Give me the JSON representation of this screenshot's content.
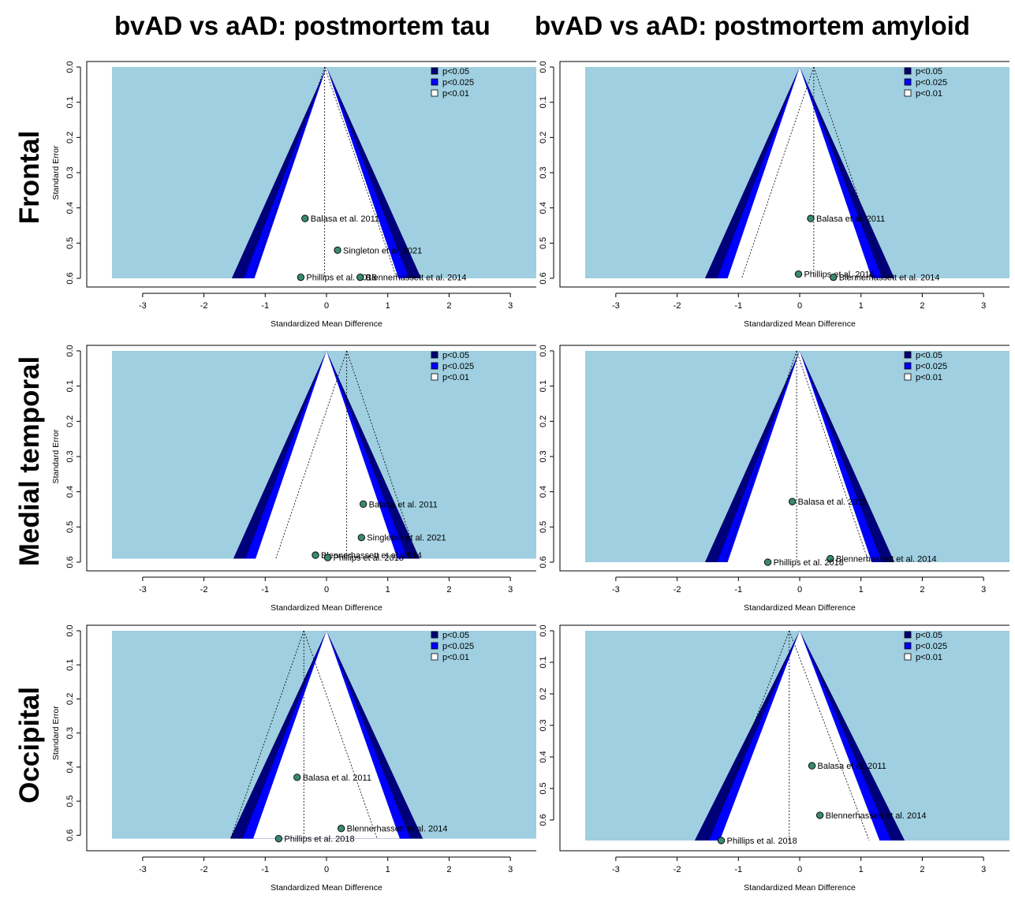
{
  "headers": {
    "col_titles": [
      "bvAD vs aAD: postmortem tau",
      "bvAD vs aAD: postmortem amyloid"
    ],
    "row_titles": [
      "Frontal",
      "Medial temporal",
      "Occipital"
    ]
  },
  "colors": {
    "background": "#9fcfe0",
    "p05": "#00007a",
    "p025": "#0000ff",
    "p01": "#ffffff",
    "point": "#3a8a70"
  },
  "legend_labels": [
    "p<0.05",
    "p<0.025",
    "p<0.01"
  ],
  "chart_data": [
    {
      "type": "scatter",
      "title": "bvAD vs aAD: postmortem tau — Frontal",
      "xlabel": "Standardized Mean Difference",
      "ylabel": "Standard Error",
      "xlim": [
        -3.5,
        3.5
      ],
      "ylim": [
        0.6,
        0.0
      ],
      "x_ticks": [
        -3,
        -2,
        -1,
        0,
        1,
        2,
        3
      ],
      "y_ticks": [
        0.0,
        0.1,
        0.2,
        0.3,
        0.4,
        0.5,
        0.6
      ],
      "se_max": 0.6,
      "pooled": -0.03,
      "points": [
        {
          "label": "Balasa et al. 2011",
          "x": -0.35,
          "y": 0.43
        },
        {
          "label": "Singleton et al. 2021",
          "x": 0.18,
          "y": 0.52
        },
        {
          "label": "Phillips et al. 2018",
          "x": -0.42,
          "y": 0.597
        },
        {
          "label": "Blennerhassett et al. 2014",
          "x": 0.55,
          "y": 0.597
        }
      ]
    },
    {
      "type": "scatter",
      "title": "bvAD vs aAD: postmortem amyloid — Frontal",
      "xlabel": "Standardized Mean Difference",
      "ylabel": "",
      "xlim": [
        -3.5,
        3.5
      ],
      "ylim": [
        0.6,
        0.0
      ],
      "x_ticks": [
        -3,
        -2,
        -1,
        0,
        1,
        2,
        3
      ],
      "y_ticks": [
        0.0,
        0.1,
        0.2,
        0.3,
        0.4,
        0.5,
        0.6
      ],
      "se_max": 0.6,
      "pooled": 0.23,
      "points": [
        {
          "label": "Balasa et al. 2011",
          "x": 0.18,
          "y": 0.43
        },
        {
          "label": "Phillips et al. 2018",
          "x": -0.02,
          "y": 0.588
        },
        {
          "label": "Blennerhassett et al. 2014",
          "x": 0.55,
          "y": 0.597
        }
      ]
    },
    {
      "type": "scatter",
      "title": "bvAD vs aAD: postmortem tau — Medial temporal",
      "xlabel": "Standardized Mean Difference",
      "ylabel": "Standard Error",
      "xlim": [
        -3.5,
        3.5
      ],
      "ylim": [
        0.6,
        0.0
      ],
      "x_ticks": [
        -3,
        -2,
        -1,
        0,
        1,
        2,
        3
      ],
      "y_ticks": [
        0.0,
        0.1,
        0.2,
        0.3,
        0.4,
        0.5,
        0.6
      ],
      "se_max": 0.59,
      "pooled": 0.33,
      "points": [
        {
          "label": "Balasa et al. 2011",
          "x": 0.6,
          "y": 0.435
        },
        {
          "label": "Singleton et al. 2021",
          "x": 0.57,
          "y": 0.53
        },
        {
          "label": "Blennerhassett et al. 2014",
          "x": -0.18,
          "y": 0.58
        },
        {
          "label": "Phillips et al. 2018",
          "x": 0.02,
          "y": 0.587
        }
      ]
    },
    {
      "type": "scatter",
      "title": "bvAD vs aAD: postmortem amyloid — Medial temporal",
      "xlabel": "Standardized Mean Difference",
      "ylabel": "",
      "xlim": [
        -3.5,
        3.5
      ],
      "ylim": [
        0.6,
        0.0
      ],
      "x_ticks": [
        -3,
        -2,
        -1,
        0,
        1,
        2,
        3
      ],
      "y_ticks": [
        0.0,
        0.1,
        0.2,
        0.3,
        0.4,
        0.5,
        0.6
      ],
      "se_max": 0.6,
      "pooled": -0.05,
      "points": [
        {
          "label": "Balasa et al. 2011",
          "x": -0.12,
          "y": 0.428
        },
        {
          "label": "Blennerhassett et al. 2014",
          "x": 0.5,
          "y": 0.59
        },
        {
          "label": "Phillips et al. 2018",
          "x": -0.52,
          "y": 0.6
        }
      ]
    },
    {
      "type": "scatter",
      "title": "bvAD vs aAD: postmortem tau — Occipital",
      "xlabel": "Standardized Mean Difference",
      "ylabel": "Standard Error",
      "xlim": [
        -3.5,
        3.5
      ],
      "ylim": [
        0.62,
        0.0
      ],
      "x_ticks": [
        -3,
        -2,
        -1,
        0,
        1,
        2,
        3
      ],
      "y_ticks": [
        0.0,
        0.1,
        0.2,
        0.3,
        0.4,
        0.5,
        0.6
      ],
      "se_max": 0.61,
      "pooled": -0.37,
      "points": [
        {
          "label": "Balasa et al. 2011",
          "x": -0.48,
          "y": 0.43
        },
        {
          "label": "Blennerhassett et al. 2014",
          "x": 0.24,
          "y": 0.58
        },
        {
          "label": "Phillips et al. 2018",
          "x": -0.78,
          "y": 0.61
        }
      ]
    },
    {
      "type": "scatter",
      "title": "bvAD vs aAD: postmortem amyloid — Occipital",
      "xlabel": "Standardized Mean Difference",
      "ylabel": "",
      "xlim": [
        -3.5,
        3.5
      ],
      "ylim": [
        0.67,
        0.0
      ],
      "x_ticks": [
        -3,
        -2,
        -1,
        0,
        1,
        2,
        3
      ],
      "y_ticks": [
        0.0,
        0.1,
        0.2,
        0.3,
        0.4,
        0.5,
        0.6
      ],
      "se_max": 0.665,
      "pooled": -0.17,
      "points": [
        {
          "label": "Balasa et al. 2011",
          "x": 0.2,
          "y": 0.428
        },
        {
          "label": "Blennerhassett et al. 2014",
          "x": 0.33,
          "y": 0.585
        },
        {
          "label": "Phillips et al. 2018",
          "x": -1.28,
          "y": 0.665
        }
      ]
    }
  ]
}
